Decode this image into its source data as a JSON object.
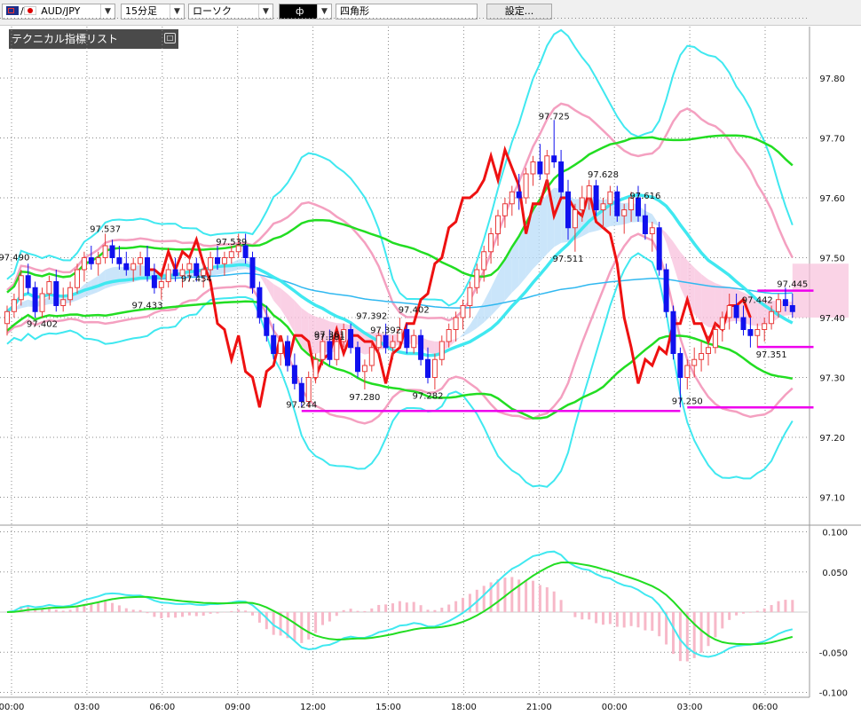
{
  "toolbar": {
    "symbol": "AUD/JPY",
    "timeframe": "15分足",
    "chart_style": "ローソク",
    "drawing_tool": "四角形",
    "settings": "設定..."
  },
  "indicator_panel": {
    "title": "テクニカル指標リスト"
  },
  "colors": {
    "up_candle": "#e83a3a",
    "down_candle": "#1010ee",
    "bollinger_2sigma": "#f4a0c0",
    "bollinger_3sigma": "#40e8f0",
    "middle_band": "#40e8f0",
    "green_band": "#22dd22",
    "red_line": "#ee1111",
    "long_ma": "#30b8f0",
    "magenta": "#ee00ee",
    "histogram": "#f7b8c8"
  },
  "chart_data": [
    {
      "type": "line",
      "price_axis": {
        "ticks": [
          "97.80",
          "97.70",
          "97.60",
          "97.50",
          "97.40",
          "97.30",
          "97.20",
          "97.10"
        ],
        "ylim": [
          97.085,
          97.845
        ]
      },
      "time_axis": {
        "ticks": [
          "00:00",
          "03:00",
          "06:00",
          "09:00",
          "12:00",
          "15:00",
          "18:00",
          "21:00",
          "00:00",
          "03:00",
          "06:00"
        ],
        "xlim": [
          0,
          130
        ]
      },
      "candles": [
        [
          97.39,
          97.42,
          97.37,
          97.41
        ],
        [
          97.41,
          97.44,
          97.4,
          97.43
        ],
        [
          97.43,
          97.48,
          97.42,
          97.47
        ],
        [
          97.47,
          97.49,
          97.44,
          97.45
        ],
        [
          97.45,
          97.46,
          97.4,
          97.41
        ],
        [
          97.41,
          97.45,
          97.4,
          97.44
        ],
        [
          97.44,
          97.47,
          97.43,
          97.46
        ],
        [
          97.46,
          97.48,
          97.41,
          97.42
        ],
        [
          97.42,
          97.45,
          97.41,
          97.43
        ],
        [
          97.43,
          97.46,
          97.42,
          97.45
        ],
        [
          97.45,
          97.49,
          97.44,
          97.48
        ],
        [
          97.48,
          97.51,
          97.46,
          97.5
        ],
        [
          97.5,
          97.52,
          97.48,
          97.49
        ],
        [
          97.49,
          97.51,
          97.47,
          97.5
        ],
        [
          97.5,
          97.54,
          97.49,
          97.52
        ],
        [
          97.52,
          97.53,
          97.49,
          97.5
        ],
        [
          97.5,
          97.52,
          97.48,
          97.49
        ],
        [
          97.49,
          97.51,
          97.47,
          97.48
        ],
        [
          97.48,
          97.5,
          97.46,
          97.49
        ],
        [
          97.49,
          97.51,
          97.47,
          97.5
        ],
        [
          97.5,
          97.52,
          97.46,
          97.47
        ],
        [
          97.47,
          97.49,
          97.44,
          97.45
        ],
        [
          97.45,
          97.47,
          97.43,
          97.46
        ],
        [
          97.46,
          97.49,
          97.45,
          97.48
        ],
        [
          97.48,
          97.5,
          97.46,
          97.47
        ],
        [
          97.47,
          97.49,
          97.45,
          97.48
        ],
        [
          97.48,
          97.5,
          97.46,
          97.49
        ],
        [
          97.49,
          97.5,
          97.46,
          97.47
        ],
        [
          97.47,
          97.49,
          97.45,
          97.48
        ],
        [
          97.48,
          97.51,
          97.47,
          97.5
        ],
        [
          97.5,
          97.52,
          97.48,
          97.49
        ],
        [
          97.49,
          97.51,
          97.47,
          97.5
        ],
        [
          97.5,
          97.52,
          97.49,
          97.51
        ],
        [
          97.51,
          97.54,
          97.5,
          97.52
        ],
        [
          97.52,
          97.54,
          97.49,
          97.5
        ],
        [
          97.5,
          97.51,
          97.44,
          97.45
        ],
        [
          97.45,
          97.46,
          97.39,
          97.4
        ],
        [
          97.4,
          97.42,
          97.36,
          97.37
        ],
        [
          97.37,
          97.39,
          97.33,
          97.34
        ],
        [
          97.34,
          97.37,
          97.32,
          97.36
        ],
        [
          97.36,
          97.37,
          97.31,
          97.32
        ],
        [
          97.32,
          97.34,
          97.28,
          97.29
        ],
        [
          97.29,
          97.3,
          97.25,
          97.26
        ],
        [
          97.26,
          97.31,
          97.25,
          97.3
        ],
        [
          97.3,
          97.34,
          97.29,
          97.33
        ],
        [
          97.33,
          97.37,
          97.32,
          97.36
        ],
        [
          97.36,
          97.38,
          97.32,
          97.33
        ],
        [
          97.33,
          97.37,
          97.32,
          97.36
        ],
        [
          97.36,
          97.39,
          97.35,
          97.38
        ],
        [
          97.38,
          97.39,
          97.34,
          97.35
        ],
        [
          97.35,
          97.36,
          97.3,
          97.31
        ],
        [
          97.31,
          97.33,
          97.28,
          97.32
        ],
        [
          97.32,
          97.36,
          97.31,
          97.35
        ],
        [
          97.35,
          97.38,
          97.34,
          97.37
        ],
        [
          97.37,
          97.39,
          97.34,
          97.35
        ],
        [
          97.35,
          97.37,
          97.33,
          97.36
        ],
        [
          97.36,
          97.4,
          97.35,
          97.38
        ],
        [
          97.38,
          97.39,
          97.34,
          97.35
        ],
        [
          97.35,
          97.38,
          97.34,
          97.37
        ],
        [
          97.37,
          97.38,
          97.32,
          97.33
        ],
        [
          97.33,
          97.35,
          97.29,
          97.3
        ],
        [
          97.3,
          97.34,
          97.28,
          97.33
        ],
        [
          97.33,
          97.37,
          97.32,
          97.36
        ],
        [
          97.36,
          97.39,
          97.35,
          97.38
        ],
        [
          97.38,
          97.41,
          97.36,
          97.4
        ],
        [
          97.4,
          97.43,
          97.38,
          97.42
        ],
        [
          97.42,
          97.46,
          97.4,
          97.45
        ],
        [
          97.45,
          97.49,
          97.44,
          97.48
        ],
        [
          97.48,
          97.52,
          97.46,
          97.51
        ],
        [
          97.51,
          97.55,
          97.49,
          97.54
        ],
        [
          97.54,
          97.58,
          97.52,
          97.57
        ],
        [
          97.57,
          97.6,
          97.55,
          97.59
        ],
        [
          97.59,
          97.62,
          97.57,
          97.61
        ],
        [
          97.61,
          97.64,
          97.58,
          97.6
        ],
        [
          97.6,
          97.65,
          97.59,
          97.64
        ],
        [
          97.64,
          97.67,
          97.62,
          97.66
        ],
        [
          97.66,
          97.69,
          97.63,
          97.64
        ],
        [
          97.64,
          97.68,
          97.62,
          97.67
        ],
        [
          97.67,
          97.73,
          97.65,
          97.66
        ],
        [
          97.66,
          97.68,
          97.6,
          97.61
        ],
        [
          97.61,
          97.63,
          97.53,
          97.55
        ],
        [
          97.55,
          97.59,
          97.51,
          97.58
        ],
        [
          97.58,
          97.62,
          97.56,
          97.6
        ],
        [
          97.6,
          97.63,
          97.58,
          97.62
        ],
        [
          97.62,
          97.63,
          97.57,
          97.58
        ],
        [
          97.58,
          97.6,
          97.55,
          97.59
        ],
        [
          97.59,
          97.62,
          97.57,
          97.61
        ],
        [
          97.61,
          97.62,
          97.56,
          97.57
        ],
        [
          97.57,
          97.59,
          97.54,
          97.58
        ],
        [
          97.58,
          97.61,
          97.56,
          97.6
        ],
        [
          97.6,
          97.62,
          97.56,
          97.57
        ],
        [
          97.57,
          97.59,
          97.53,
          97.54
        ],
        [
          97.54,
          97.56,
          97.51,
          97.55
        ],
        [
          97.55,
          97.56,
          97.47,
          97.48
        ],
        [
          97.48,
          97.49,
          97.4,
          97.41
        ],
        [
          97.41,
          97.42,
          97.33,
          97.34
        ],
        [
          97.34,
          97.35,
          97.25,
          97.3
        ],
        [
          97.3,
          97.33,
          97.28,
          97.32
        ],
        [
          97.32,
          97.35,
          97.3,
          97.33
        ],
        [
          97.33,
          97.36,
          97.31,
          97.34
        ],
        [
          97.34,
          97.37,
          97.32,
          97.35
        ],
        [
          97.35,
          97.39,
          97.34,
          97.38
        ],
        [
          97.38,
          97.41,
          97.36,
          97.4
        ],
        [
          97.4,
          97.44,
          97.38,
          97.42
        ],
        [
          97.42,
          97.44,
          97.39,
          97.4
        ],
        [
          97.4,
          97.42,
          97.37,
          97.38
        ],
        [
          97.38,
          97.4,
          97.35,
          97.37
        ],
        [
          97.37,
          97.39,
          97.35,
          97.38
        ],
        [
          97.38,
          97.4,
          97.36,
          97.39
        ],
        [
          97.39,
          97.42,
          97.38,
          97.41
        ],
        [
          97.41,
          97.44,
          97.4,
          97.43
        ],
        [
          97.43,
          97.45,
          97.41,
          97.42
        ],
        [
          97.42,
          97.44,
          97.4,
          97.41
        ]
      ],
      "price_labels": [
        {
          "i": 1,
          "v": 97.49,
          "text": "97.490"
        },
        {
          "i": 5,
          "v": 97.402,
          "text": "97.402"
        },
        {
          "i": 14,
          "v": 97.537,
          "text": "97.537"
        },
        {
          "i": 20,
          "v": 97.433,
          "text": "97.433"
        },
        {
          "i": 27,
          "v": 97.454,
          "text": "97.454"
        },
        {
          "i": 32,
          "v": 97.539,
          "text": "97.539"
        },
        {
          "i": 42,
          "v": 97.244,
          "text": "97.244"
        },
        {
          "i": 46,
          "v": 97.381,
          "text": "97.381"
        },
        {
          "i": 46,
          "v": 97.361,
          "text": "97.361"
        },
        {
          "i": 51,
          "v": 97.28,
          "text": "97.280"
        },
        {
          "i": 52,
          "v": 97.392,
          "text": "97.392"
        },
        {
          "i": 54,
          "v": 97.392,
          "text": "97.392"
        },
        {
          "i": 58,
          "v": 97.402,
          "text": "97.402"
        },
        {
          "i": 60,
          "v": 97.282,
          "text": "97.282"
        },
        {
          "i": 78,
          "v": 97.725,
          "text": "97.725"
        },
        {
          "i": 80,
          "v": 97.511,
          "text": "97.511"
        },
        {
          "i": 85,
          "v": 97.628,
          "text": "97.628"
        },
        {
          "i": 91,
          "v": 97.616,
          "text": "97.616"
        },
        {
          "i": 97,
          "v": 97.25,
          "text": "97.250"
        },
        {
          "i": 107,
          "v": 97.442,
          "text": "97.442"
        },
        {
          "i": 112,
          "v": 97.445,
          "text": "97.445"
        },
        {
          "i": 109,
          "v": 97.351,
          "text": "97.351"
        }
      ],
      "horizontal_lines": [
        {
          "x1": 42,
          "x2": 96,
          "v": 97.244
        },
        {
          "x1": 97,
          "x2": 115,
          "v": 97.25
        },
        {
          "x1": 107,
          "x2": 115,
          "v": 97.445
        },
        {
          "x1": 107,
          "x2": 115,
          "v": 97.351
        }
      ],
      "zones": [
        {
          "x1": 112,
          "x2": 120,
          "v1": 97.49,
          "v2": 97.4,
          "color": "pink"
        }
      ]
    },
    {
      "type": "bar",
      "axis": {
        "ticks": [
          "0.100",
          "0.050",
          "-0.050",
          "-0.100"
        ],
        "ylim": [
          -0.106,
          0.108
        ]
      },
      "series": [
        "macd_line",
        "signal_line",
        "histogram"
      ]
    }
  ]
}
